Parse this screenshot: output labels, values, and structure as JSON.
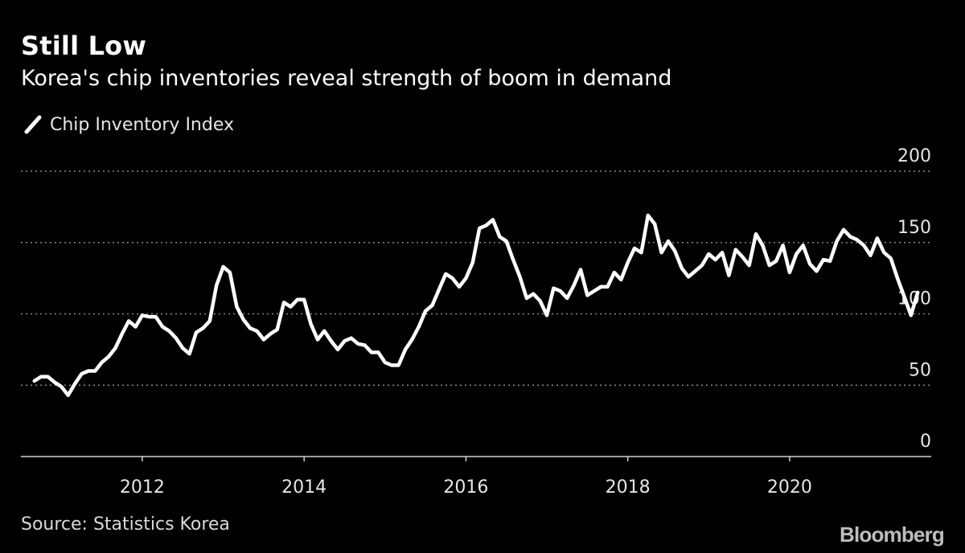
{
  "header": {
    "title": "Still Low",
    "subtitle": "Korea's chip inventories reveal strength of boom in demand"
  },
  "legend": {
    "label": "Chip Inventory Index",
    "icon": "line-swatch-icon"
  },
  "footer": {
    "source": "Source: Statistics Korea",
    "brand": "Bloomberg"
  },
  "colors": {
    "background": "#000000",
    "line": "#ffffff",
    "grid": "#8a8a8a",
    "text": "#e6e6e6"
  },
  "chart_data": {
    "type": "line",
    "title": "Still Low",
    "subtitle": "Korea's chip inventories reveal strength of boom in demand",
    "xlabel": "",
    "ylabel": "",
    "ylim": [
      0,
      200
    ],
    "xlim": [
      2010.5,
      2021.75
    ],
    "y_ticks": [
      0,
      50,
      100,
      150,
      200
    ],
    "y_tick_labels": [
      "0",
      "50",
      "100",
      "150",
      "200"
    ],
    "x_ticks": [
      2012,
      2014,
      2016,
      2018,
      2020
    ],
    "x_tick_labels": [
      "2012",
      "2014",
      "2016",
      "2018",
      "2020"
    ],
    "grid": "horizontal dotted",
    "legend_position": "top-left",
    "series": [
      {
        "name": "Chip Inventory Index",
        "points": [
          [
            2010.667,
            53
          ],
          [
            2010.75,
            56
          ],
          [
            2010.833,
            56
          ],
          [
            2010.917,
            52
          ],
          [
            2011.0,
            49
          ],
          [
            2011.083,
            43
          ],
          [
            2011.167,
            51
          ],
          [
            2011.25,
            58
          ],
          [
            2011.333,
            60
          ],
          [
            2011.417,
            60
          ],
          [
            2011.5,
            66
          ],
          [
            2011.583,
            70
          ],
          [
            2011.667,
            76
          ],
          [
            2011.75,
            86
          ],
          [
            2011.833,
            95
          ],
          [
            2011.917,
            91
          ],
          [
            2012.0,
            99
          ],
          [
            2012.083,
            98
          ],
          [
            2012.167,
            98
          ],
          [
            2012.25,
            91
          ],
          [
            2012.333,
            88
          ],
          [
            2012.417,
            83
          ],
          [
            2012.5,
            76
          ],
          [
            2012.583,
            72
          ],
          [
            2012.667,
            87
          ],
          [
            2012.75,
            90
          ],
          [
            2012.833,
            95
          ],
          [
            2012.917,
            120
          ],
          [
            2013.0,
            133
          ],
          [
            2013.083,
            129
          ],
          [
            2013.167,
            105
          ],
          [
            2013.25,
            96
          ],
          [
            2013.333,
            90
          ],
          [
            2013.417,
            88
          ],
          [
            2013.5,
            82
          ],
          [
            2013.583,
            86
          ],
          [
            2013.667,
            89
          ],
          [
            2013.75,
            108
          ],
          [
            2013.833,
            105
          ],
          [
            2013.917,
            110
          ],
          [
            2014.0,
            110
          ],
          [
            2014.083,
            93
          ],
          [
            2014.167,
            82
          ],
          [
            2014.25,
            88
          ],
          [
            2014.333,
            81
          ],
          [
            2014.417,
            75
          ],
          [
            2014.5,
            81
          ],
          [
            2014.583,
            83
          ],
          [
            2014.667,
            79
          ],
          [
            2014.75,
            78
          ],
          [
            2014.833,
            73
          ],
          [
            2014.917,
            73
          ],
          [
            2015.0,
            66
          ],
          [
            2015.083,
            64
          ],
          [
            2015.167,
            64
          ],
          [
            2015.25,
            75
          ],
          [
            2015.333,
            82
          ],
          [
            2015.417,
            91
          ],
          [
            2015.5,
            102
          ],
          [
            2015.583,
            106
          ],
          [
            2015.667,
            117
          ],
          [
            2015.75,
            128
          ],
          [
            2015.833,
            125
          ],
          [
            2015.917,
            119
          ],
          [
            2016.0,
            125
          ],
          [
            2016.083,
            136
          ],
          [
            2016.167,
            160
          ],
          [
            2016.25,
            162
          ],
          [
            2016.333,
            166
          ],
          [
            2016.417,
            154
          ],
          [
            2016.5,
            151
          ],
          [
            2016.583,
            138
          ],
          [
            2016.667,
            126
          ],
          [
            2016.75,
            111
          ],
          [
            2016.833,
            114
          ],
          [
            2016.917,
            109
          ],
          [
            2017.0,
            99
          ],
          [
            2017.083,
            118
          ],
          [
            2017.167,
            116
          ],
          [
            2017.25,
            111
          ],
          [
            2017.333,
            120
          ],
          [
            2017.417,
            131
          ],
          [
            2017.5,
            113
          ],
          [
            2017.583,
            116
          ],
          [
            2017.667,
            119
          ],
          [
            2017.75,
            119
          ],
          [
            2017.833,
            129
          ],
          [
            2017.917,
            124
          ],
          [
            2018.0,
            136
          ],
          [
            2018.083,
            146
          ],
          [
            2018.167,
            143
          ],
          [
            2018.25,
            169
          ],
          [
            2018.333,
            163
          ],
          [
            2018.417,
            143
          ],
          [
            2018.5,
            151
          ],
          [
            2018.583,
            144
          ],
          [
            2018.667,
            132
          ],
          [
            2018.75,
            126
          ],
          [
            2018.833,
            130
          ],
          [
            2018.917,
            134
          ],
          [
            2019.0,
            142
          ],
          [
            2019.083,
            138
          ],
          [
            2019.167,
            143
          ],
          [
            2019.25,
            127
          ],
          [
            2019.333,
            145
          ],
          [
            2019.417,
            140
          ],
          [
            2019.5,
            134
          ],
          [
            2019.583,
            156
          ],
          [
            2019.667,
            148
          ],
          [
            2019.75,
            134
          ],
          [
            2019.833,
            137
          ],
          [
            2019.917,
            148
          ],
          [
            2020.0,
            129
          ],
          [
            2020.083,
            142
          ],
          [
            2020.167,
            148
          ],
          [
            2020.25,
            135
          ],
          [
            2020.333,
            130
          ],
          [
            2020.417,
            138
          ],
          [
            2020.5,
            137
          ],
          [
            2020.583,
            151
          ],
          [
            2020.667,
            159
          ],
          [
            2020.75,
            154
          ],
          [
            2020.833,
            152
          ],
          [
            2020.917,
            148
          ],
          [
            2021.0,
            141
          ],
          [
            2021.083,
            153
          ],
          [
            2021.167,
            143
          ],
          [
            2021.25,
            139
          ],
          [
            2021.333,
            125
          ],
          [
            2021.417,
            112
          ],
          [
            2021.5,
            99
          ],
          [
            2021.583,
            115
          ]
        ]
      }
    ]
  }
}
